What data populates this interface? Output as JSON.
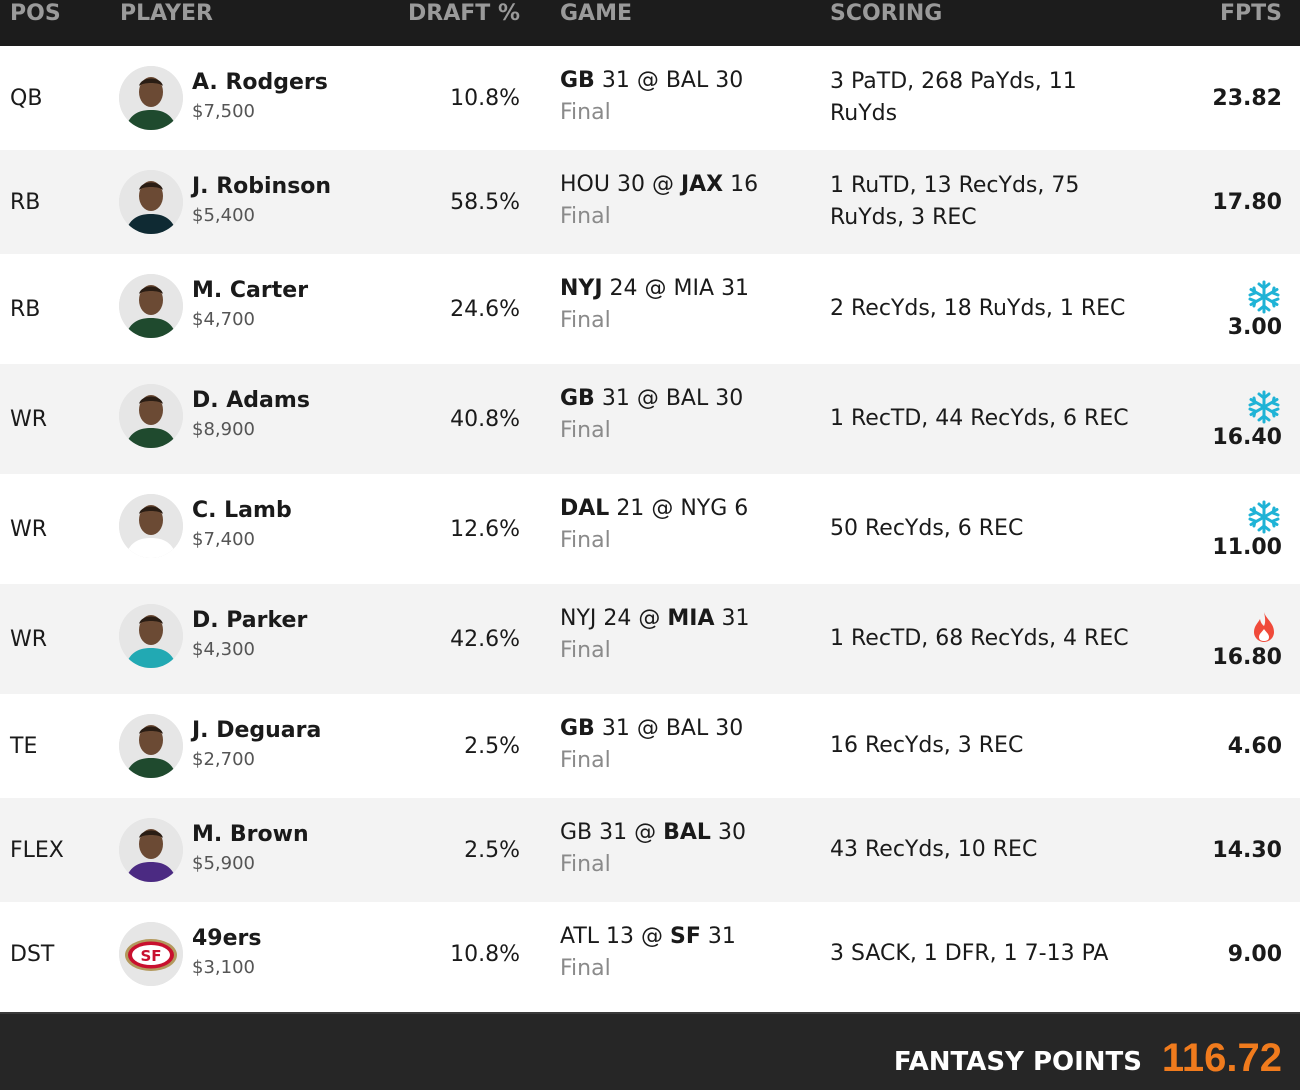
{
  "header": {
    "pos": "POS",
    "player": "PLAYER",
    "draft": "DRAFT %",
    "game": "GAME",
    "scoring": "SCORING",
    "fpts": "FPTS"
  },
  "rows": [
    {
      "pos": "QB",
      "name": "A. Rodgers",
      "salary": "$7,500",
      "draft": "10.8%",
      "away": "GB",
      "away_score": "31",
      "at": "@",
      "home": "BAL",
      "home_score": "30",
      "away_bold": true,
      "home_bold": false,
      "status": "Final",
      "scoring": "3 PaTD, 268 PaYds, 11 RuYds",
      "fpts": "23.82",
      "icon": "none",
      "jersey": "#1f4a2e"
    },
    {
      "pos": "RB",
      "name": "J. Robinson",
      "salary": "$5,400",
      "draft": "58.5%",
      "away": "HOU",
      "away_score": "30",
      "at": "@",
      "home": "JAX",
      "home_score": "16",
      "away_bold": false,
      "home_bold": true,
      "status": "Final",
      "scoring": "1 RuTD, 13 RecYds, 75 RuYds, 3 REC",
      "fpts": "17.80",
      "icon": "none",
      "jersey": "#0f2a33"
    },
    {
      "pos": "RB",
      "name": "M. Carter",
      "salary": "$4,700",
      "draft": "24.6%",
      "away": "NYJ",
      "away_score": "24",
      "at": "@",
      "home": "MIA",
      "home_score": "31",
      "away_bold": true,
      "home_bold": false,
      "status": "Final",
      "scoring": "2 RecYds, 18 RuYds, 1 REC",
      "fpts": "3.00",
      "icon": "snowflake-icon",
      "jersey": "#1f4a2e"
    },
    {
      "pos": "WR",
      "name": "D. Adams",
      "salary": "$8,900",
      "draft": "40.8%",
      "away": "GB",
      "away_score": "31",
      "at": "@",
      "home": "BAL",
      "home_score": "30",
      "away_bold": true,
      "home_bold": false,
      "status": "Final",
      "scoring": "1 RecTD, 44 RecYds, 6 REC",
      "fpts": "16.40",
      "icon": "snowflake-icon",
      "jersey": "#1f4a2e"
    },
    {
      "pos": "WR",
      "name": "C. Lamb",
      "salary": "$7,400",
      "draft": "12.6%",
      "away": "DAL",
      "away_score": "21",
      "at": "@",
      "home": "NYG",
      "home_score": "6",
      "away_bold": true,
      "home_bold": false,
      "status": "Final",
      "scoring": "50 RecYds, 6 REC",
      "fpts": "11.00",
      "icon": "snowflake-icon",
      "jersey": "#ffffff"
    },
    {
      "pos": "WR",
      "name": "D. Parker",
      "salary": "$4,300",
      "draft": "42.6%",
      "away": "NYJ",
      "away_score": "24",
      "at": "@",
      "home": "MIA",
      "home_score": "31",
      "away_bold": false,
      "home_bold": true,
      "status": "Final",
      "scoring": "1 RecTD, 68 RecYds, 4 REC",
      "fpts": "16.80",
      "icon": "flame-icon",
      "jersey": "#22a9b3"
    },
    {
      "pos": "TE",
      "name": "J. Deguara",
      "salary": "$2,700",
      "draft": "2.5%",
      "away": "GB",
      "away_score": "31",
      "at": "@",
      "home": "BAL",
      "home_score": "30",
      "away_bold": true,
      "home_bold": false,
      "status": "Final",
      "scoring": "16 RecYds, 3 REC",
      "fpts": "4.60",
      "icon": "none",
      "jersey": "#1f4a2e"
    },
    {
      "pos": "FLEX",
      "name": "M. Brown",
      "salary": "$5,900",
      "draft": "2.5%",
      "away": "GB",
      "away_score": "31",
      "at": "@",
      "home": "BAL",
      "home_score": "30",
      "away_bold": false,
      "home_bold": true,
      "status": "Final",
      "scoring": "43 RecYds, 10 REC",
      "fpts": "14.30",
      "icon": "none",
      "jersey": "#4b2a82"
    },
    {
      "pos": "DST",
      "name": "49ers",
      "salary": "$3,100",
      "draft": "10.8%",
      "away": "ATL",
      "away_score": "13",
      "at": "@",
      "home": "SF",
      "home_score": "31",
      "away_bold": false,
      "home_bold": true,
      "status": "Final",
      "scoring": "3 SACK, 1 DFR, 1 7-13 PA",
      "fpts": "9.00",
      "icon": "none",
      "jersey": "logo"
    }
  ],
  "footer": {
    "label": "FANTASY POINTS",
    "total": "116.72"
  },
  "colors": {
    "header_bg": "#1c1c1c",
    "footer_bg": "#262626",
    "accent_total": "#f07b1d",
    "snowflake": "#1fb3d6",
    "flame": "#f04a3a"
  }
}
